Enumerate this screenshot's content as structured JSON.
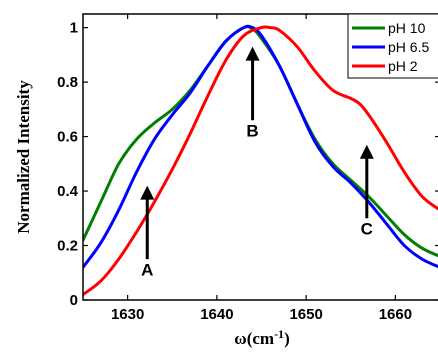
{
  "chart_data": {
    "type": "line",
    "xlabel_base": "ω(cm",
    "xlabel_sup": "-1",
    "xlabel_close": ")",
    "ylabel": "Normalized Intensity",
    "xlim": [
      1625,
      1665
    ],
    "ylim": [
      0,
      1.05
    ],
    "xticks": [
      1630,
      1640,
      1650,
      1660
    ],
    "xtick_labels": [
      "1630",
      "1640",
      "1650",
      "1660"
    ],
    "yticks": [
      0,
      0.2,
      0.4,
      0.6,
      0.8,
      1
    ],
    "ytick_labels": [
      "0",
      "0.2",
      "0.4",
      "0.6",
      "0.8",
      "1"
    ],
    "legend_position": "top-right",
    "series": [
      {
        "name": "pH 10",
        "color": "#008000",
        "x": [
          1625,
          1627,
          1629,
          1631,
          1633,
          1635,
          1637,
          1639,
          1641,
          1643,
          1644,
          1645,
          1647,
          1649,
          1651,
          1653,
          1655,
          1657,
          1659,
          1661,
          1663,
          1665
        ],
        "y": [
          0.22,
          0.36,
          0.5,
          0.59,
          0.65,
          0.7,
          0.77,
          0.86,
          0.95,
          1.0,
          0.995,
          0.96,
          0.86,
          0.72,
          0.59,
          0.5,
          0.44,
          0.38,
          0.31,
          0.24,
          0.19,
          0.16
        ]
      },
      {
        "name": "pH 6.5",
        "color": "#0000ff",
        "x": [
          1625,
          1627,
          1629,
          1631,
          1633,
          1635,
          1637,
          1639,
          1641,
          1643,
          1644,
          1645,
          1647,
          1649,
          1651,
          1653,
          1655,
          1657,
          1659,
          1661,
          1663,
          1665
        ],
        "y": [
          0.12,
          0.21,
          0.33,
          0.47,
          0.59,
          0.68,
          0.76,
          0.86,
          0.95,
          1.0,
          1.0,
          0.97,
          0.86,
          0.72,
          0.58,
          0.49,
          0.43,
          0.36,
          0.28,
          0.2,
          0.15,
          0.12
        ]
      },
      {
        "name": "pH 2",
        "color": "#ff0000",
        "x": [
          1625,
          1627,
          1629,
          1631,
          1633,
          1635,
          1637,
          1639,
          1641,
          1643,
          1645,
          1646,
          1647,
          1649,
          1651,
          1653,
          1655,
          1656,
          1657,
          1659,
          1661,
          1663,
          1665
        ],
        "y": [
          0.02,
          0.07,
          0.15,
          0.25,
          0.36,
          0.48,
          0.61,
          0.75,
          0.88,
          0.97,
          1.0,
          1.0,
          0.99,
          0.93,
          0.84,
          0.77,
          0.74,
          0.72,
          0.68,
          0.58,
          0.47,
          0.38,
          0.33
        ]
      }
    ],
    "annotations": [
      {
        "label": "A",
        "arrow_x": 1632.2,
        "arrow_y_from": 0.15,
        "arrow_y_to": 0.42,
        "label_x": 1632.2,
        "label_y": 0.09
      },
      {
        "label": "B",
        "arrow_x": 1644.0,
        "arrow_y_from": 0.66,
        "arrow_y_to": 0.93,
        "label_x": 1644.0,
        "label_y": 0.6
      },
      {
        "label": "C",
        "arrow_x": 1656.8,
        "arrow_y_from": 0.3,
        "arrow_y_to": 0.57,
        "label_x": 1656.8,
        "label_y": 0.24
      }
    ]
  }
}
